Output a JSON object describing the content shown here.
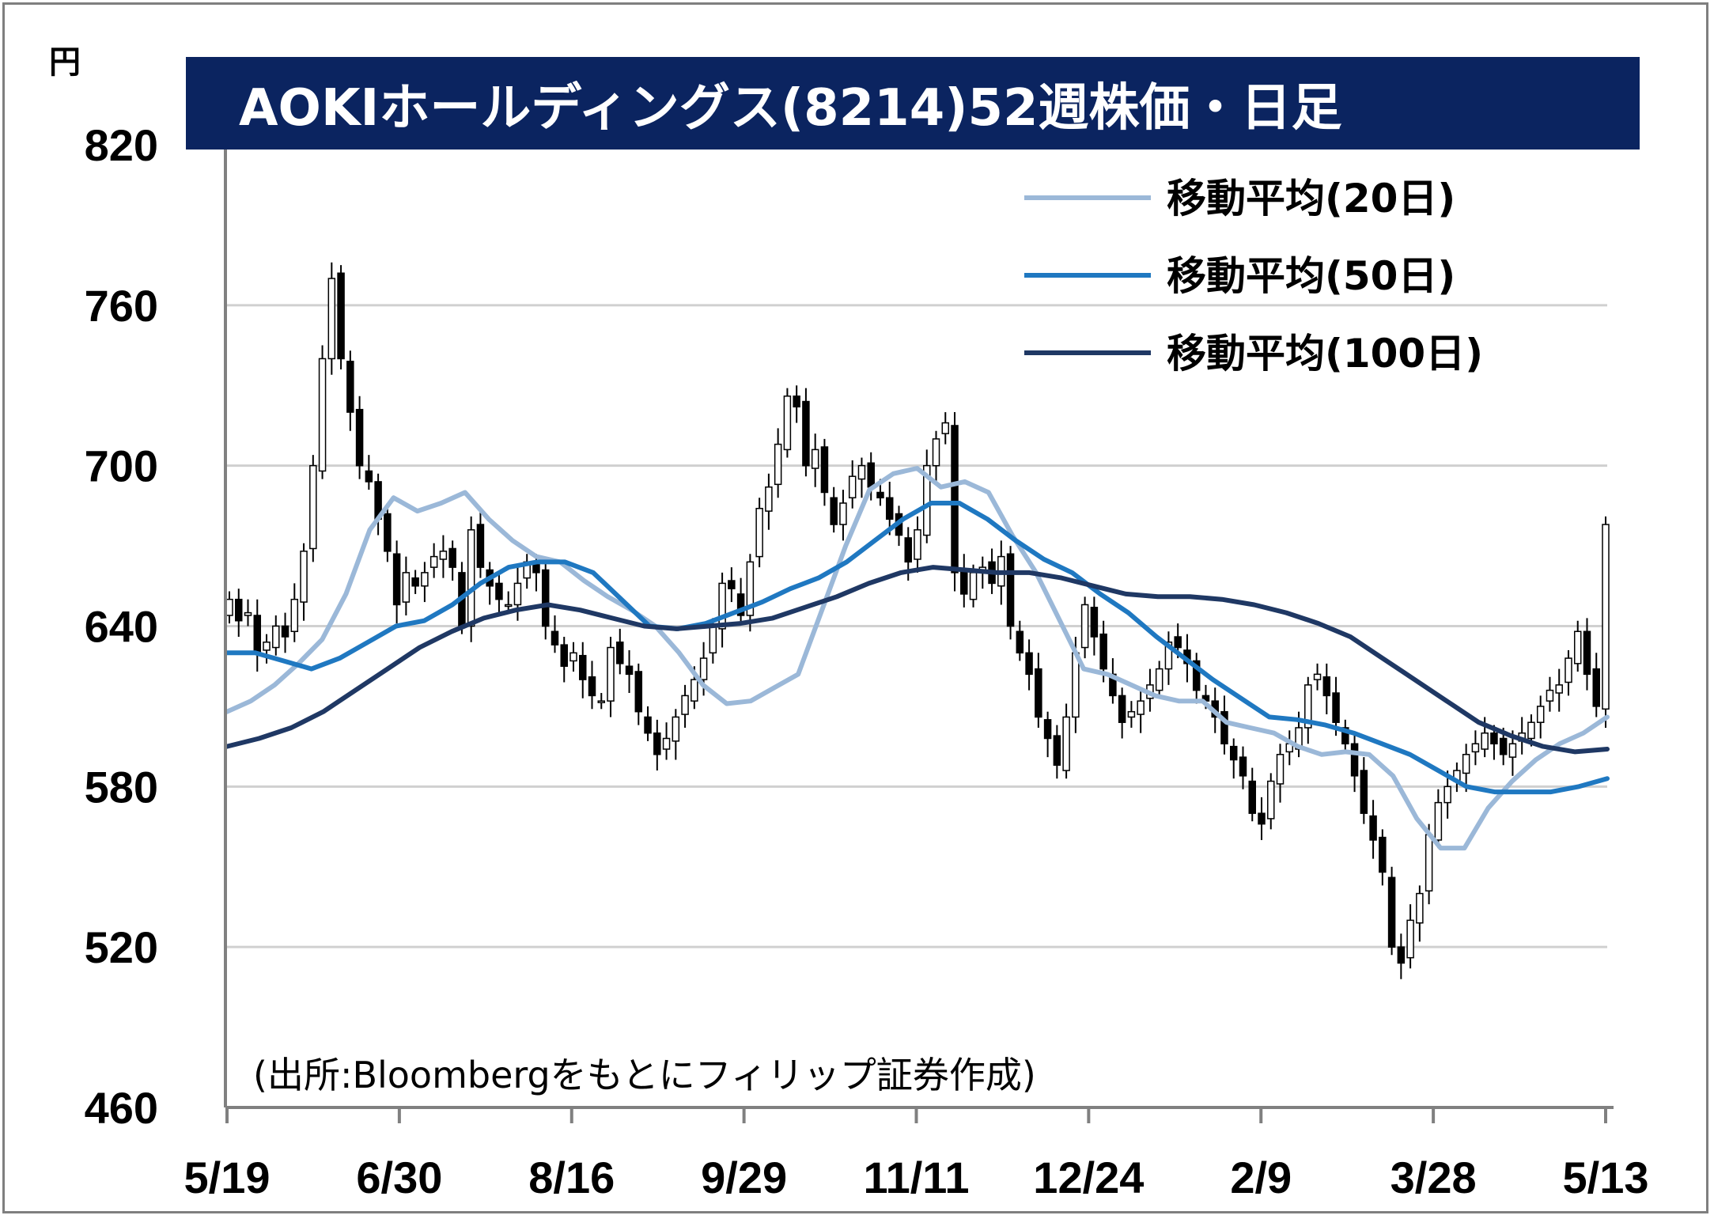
{
  "chart_data": {
    "type": "candlestick",
    "title": "AOKIホールディングス(8214)52週株価・日足",
    "unit": "円",
    "source": "(出所:Bloombergをもとにフィリップ証券作成)",
    "ylim": [
      460,
      820
    ],
    "yticks": [
      820,
      760,
      700,
      640,
      580,
      520,
      460
    ],
    "x_labels": [
      "5/19",
      "6/30",
      "8/16",
      "9/29",
      "11/11",
      "12/24",
      "2/9",
      "3/28",
      "5/13"
    ],
    "grid": "horizontal",
    "legend_position": "top-right",
    "candles_close": [
      650,
      642,
      645,
      630,
      634,
      640,
      636,
      650,
      668,
      700,
      740,
      770,
      740,
      720,
      700,
      694,
      680,
      668,
      648,
      660,
      655,
      660,
      666,
      668,
      662,
      640,
      676,
      662,
      655,
      650,
      648,
      656,
      664,
      660,
      640,
      633,
      625,
      630,
      620,
      614,
      612,
      632,
      626,
      622,
      608,
      600,
      592,
      598,
      606,
      614,
      620,
      628,
      640,
      656,
      654,
      644,
      664,
      684,
      692,
      708,
      726,
      722,
      700,
      706,
      690,
      678,
      686,
      696,
      700,
      692,
      688,
      680,
      674,
      664,
      676,
      700,
      710,
      716,
      660,
      652,
      660,
      662,
      656,
      666,
      640,
      630,
      622,
      606,
      598,
      588,
      606,
      630,
      648,
      636,
      624,
      614,
      604,
      608,
      612,
      618,
      624,
      634,
      632,
      626,
      616,
      612,
      606,
      596,
      590,
      584,
      570,
      566,
      582,
      592,
      596,
      602,
      618,
      622,
      614,
      604,
      596,
      584,
      570,
      560,
      548,
      520,
      514,
      530,
      540,
      562,
      574,
      580,
      586,
      592,
      596,
      600,
      596,
      592,
      596,
      600,
      604,
      610,
      616,
      618,
      628,
      638,
      622,
      610,
      678
    ],
    "series": [
      {
        "name": "移動平均(20日)",
        "color": "#9bb8d8",
        "values": [
          608,
          612,
          618,
          626,
          635,
          652,
          676,
          688,
          683,
          686,
          690,
          680,
          672,
          666,
          664,
          657,
          651,
          646,
          640,
          630,
          618,
          611,
          612,
          617,
          622,
          646,
          670,
          691,
          697,
          699,
          692,
          694,
          690,
          674,
          660,
          642,
          624,
          622,
          618,
          614,
          612,
          612,
          604,
          602,
          600,
          595,
          592,
          593,
          592,
          584,
          568,
          557,
          557,
          572,
          582,
          590,
          596,
          600,
          606
        ]
      },
      {
        "name": "移動平均(50日)",
        "color": "#1f78c1",
        "values": [
          630,
          630,
          627,
          624,
          628,
          634,
          640,
          642,
          648,
          656,
          662,
          664,
          664,
          660,
          650,
          640,
          639,
          641,
          645,
          649,
          654,
          658,
          664,
          672,
          680,
          686,
          686,
          680,
          672,
          665,
          660,
          652,
          645,
          636,
          628,
          620,
          613,
          606,
          605,
          603,
          600,
          596,
          592,
          586,
          580,
          578,
          578,
          578,
          580,
          583
        ]
      },
      {
        "name": "移動平均(100日)",
        "color": "#1f3864",
        "values": [
          595,
          598,
          602,
          608,
          616,
          624,
          632,
          638,
          643,
          646,
          648,
          646,
          643,
          640,
          639,
          640,
          641,
          643,
          647,
          651,
          656,
          660,
          662,
          661,
          660,
          660,
          658,
          655,
          652,
          651,
          651,
          650,
          648,
          645,
          641,
          636,
          628,
          620,
          612,
          604,
          599,
          595,
          593,
          594
        ]
      }
    ]
  },
  "colors": {
    "title_bg": "#0b2460",
    "grid": "#d0d0d0",
    "axis": "#808080",
    "frame": "#7f7f7f"
  }
}
